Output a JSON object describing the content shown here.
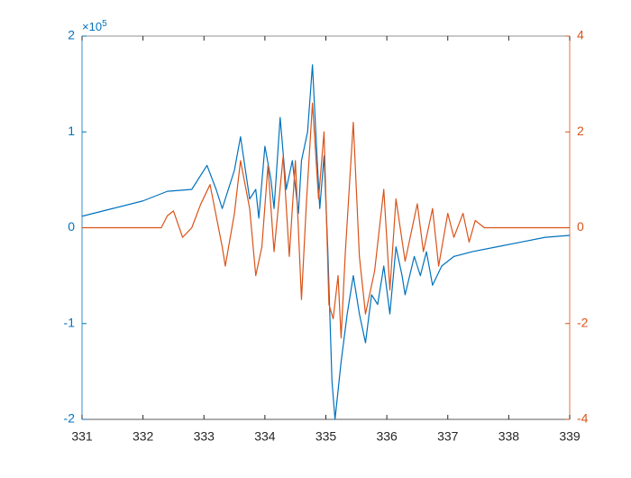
{
  "chart_data": {
    "type": "line",
    "y_multiplier": {
      "base": "×10",
      "exponent": "5"
    },
    "xlim": [
      331,
      339
    ],
    "xticks": [
      331,
      332,
      333,
      334,
      335,
      336,
      337,
      338,
      339
    ],
    "ylim": [
      -2,
      2
    ],
    "yticks": [
      -2,
      -1,
      0,
      1,
      2
    ],
    "y2lim": [
      -4,
      4
    ],
    "y2ticks": [
      -4,
      -2,
      0,
      2,
      4
    ],
    "series": [
      {
        "color": "#0072BD",
        "axis": "y",
        "x": [
          331,
          331.5,
          332,
          332.4,
          332.8,
          333.05,
          333.2,
          333.3,
          333.5,
          333.6,
          333.75,
          333.85,
          333.9,
          334.0,
          334.1,
          334.15,
          334.25,
          334.35,
          334.45,
          334.55,
          334.6,
          334.7,
          334.78,
          334.85,
          334.9,
          334.97,
          335.03,
          335.1,
          335.15,
          335.25,
          335.35,
          335.45,
          335.55,
          335.65,
          335.75,
          335.85,
          335.95,
          336.05,
          336.15,
          336.25,
          336.3,
          336.45,
          336.55,
          336.65,
          336.75,
          336.9,
          337.1,
          337.4,
          337.8,
          338.2,
          338.6,
          339
        ],
        "values": [
          0.12,
          0.2,
          0.28,
          0.38,
          0.4,
          0.65,
          0.4,
          0.2,
          0.6,
          0.95,
          0.3,
          0.4,
          0.1,
          0.85,
          0.5,
          0.2,
          1.15,
          0.4,
          0.7,
          0.15,
          0.7,
          1.0,
          1.7,
          0.8,
          0.2,
          0.75,
          -0.2,
          -1.6,
          -2.0,
          -1.4,
          -0.9,
          -0.5,
          -0.9,
          -1.2,
          -0.7,
          -0.8,
          -0.4,
          -0.9,
          -0.2,
          -0.5,
          -0.7,
          -0.3,
          -0.5,
          -0.25,
          -0.6,
          -0.4,
          -0.3,
          -0.25,
          -0.2,
          -0.15,
          -0.1,
          -0.08
        ]
      },
      {
        "color": "#D95319",
        "axis": "y2",
        "x": [
          331,
          332.3,
          332.4,
          332.5,
          332.65,
          332.8,
          332.95,
          333.1,
          333.3,
          333.35,
          333.5,
          333.6,
          333.75,
          333.85,
          333.95,
          334.05,
          334.15,
          334.3,
          334.4,
          334.5,
          334.6,
          334.68,
          334.78,
          334.88,
          334.97,
          335.05,
          335.12,
          335.2,
          335.25,
          335.32,
          335.45,
          335.55,
          335.65,
          335.8,
          335.95,
          336.05,
          336.15,
          336.3,
          336.5,
          336.6,
          336.75,
          336.85,
          337.0,
          337.1,
          337.25,
          337.35,
          337.45,
          337.6,
          339
        ],
        "values": [
          0,
          0,
          0.25,
          0.35,
          -0.2,
          0,
          0.5,
          0.9,
          -0.4,
          -0.8,
          0.3,
          1.4,
          0.4,
          -1.0,
          -0.4,
          1.3,
          -0.5,
          1.5,
          -0.6,
          1.4,
          -1.5,
          0.5,
          2.6,
          0.6,
          2.0,
          -1.6,
          -1.9,
          -1.0,
          -2.3,
          -0.5,
          2.2,
          -0.6,
          -1.8,
          -0.9,
          0.8,
          -1.3,
          0.6,
          -0.7,
          0.5,
          -0.5,
          0.4,
          -0.8,
          0.3,
          -0.2,
          0.3,
          -0.3,
          0.15,
          0,
          0
        ]
      }
    ]
  }
}
